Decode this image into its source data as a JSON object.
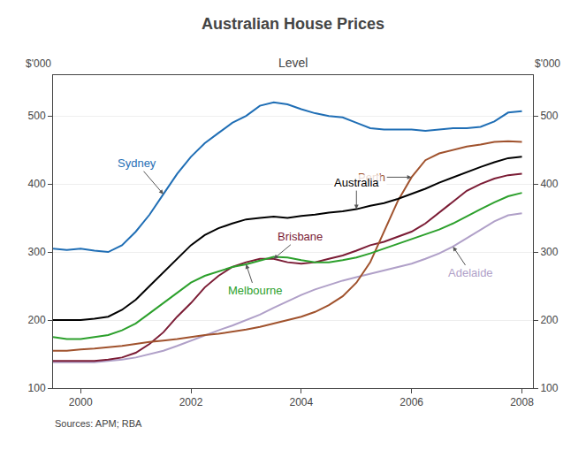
{
  "chart_data": {
    "type": "line",
    "title": "Australian House Prices",
    "subtitle": "Level",
    "ylabel": "$'000",
    "y2label": "$'000",
    "source": "Sources: APM; RBA",
    "x": [
      1999.5,
      1999.75,
      2000.0,
      2000.25,
      2000.5,
      2000.75,
      2001.0,
      2001.25,
      2001.5,
      2001.75,
      2002.0,
      2002.25,
      2002.5,
      2002.75,
      2003.0,
      2003.25,
      2003.5,
      2003.75,
      2004.0,
      2004.25,
      2004.5,
      2004.75,
      2005.0,
      2005.25,
      2005.5,
      2005.75,
      2006.0,
      2006.25,
      2006.5,
      2006.75,
      2007.0,
      2007.25,
      2007.5,
      2007.75,
      2008.0
    ],
    "xlim": [
      1999.5,
      2008.2
    ],
    "xticks": [
      2000,
      2002,
      2004,
      2006,
      2008
    ],
    "ylim": [
      100,
      560
    ],
    "yticks": [
      100,
      200,
      300,
      400,
      500
    ],
    "y2lim": [
      100,
      560
    ],
    "y2ticks": [
      100,
      200,
      300,
      400,
      500
    ],
    "grid": "y",
    "series": [
      {
        "name": "Adelaide",
        "color": "#b0a0c8",
        "values": [
          138,
          138,
          138,
          138,
          140,
          142,
          145,
          150,
          155,
          162,
          170,
          178,
          185,
          192,
          200,
          208,
          218,
          228,
          237,
          245,
          252,
          258,
          263,
          268,
          273,
          278,
          283,
          290,
          298,
          308,
          320,
          333,
          345,
          354,
          357
        ]
      },
      {
        "name": "Brisbane",
        "color": "#7b1c35",
        "values": [
          140,
          140,
          140,
          140,
          142,
          145,
          152,
          165,
          182,
          205,
          225,
          248,
          265,
          278,
          285,
          290,
          290,
          285,
          283,
          285,
          290,
          295,
          302,
          310,
          315,
          322,
          330,
          342,
          358,
          375,
          390,
          400,
          408,
          413,
          415
        ]
      },
      {
        "name": "Perth",
        "color": "#a0522d",
        "values": [
          155,
          155,
          157,
          158,
          160,
          162,
          165,
          168,
          170,
          172,
          175,
          178,
          180,
          183,
          186,
          190,
          195,
          200,
          205,
          212,
          222,
          235,
          255,
          285,
          330,
          375,
          410,
          435,
          445,
          450,
          455,
          458,
          462,
          463,
          462
        ]
      },
      {
        "name": "Melbourne",
        "color": "#2ca02c",
        "values": [
          175,
          172,
          172,
          175,
          178,
          185,
          195,
          210,
          225,
          240,
          255,
          265,
          272,
          278,
          282,
          288,
          293,
          292,
          288,
          285,
          285,
          288,
          292,
          298,
          305,
          312,
          318,
          325,
          333,
          342,
          353,
          363,
          373,
          382,
          387
        ]
      },
      {
        "name": "Australia",
        "color": "#000000",
        "values": [
          200,
          200,
          200,
          202,
          205,
          215,
          230,
          250,
          270,
          290,
          310,
          325,
          335,
          342,
          348,
          350,
          352,
          350,
          353,
          355,
          358,
          360,
          363,
          368,
          372,
          378,
          385,
          393,
          402,
          410,
          418,
          425,
          432,
          438,
          440
        ]
      },
      {
        "name": "Sydney",
        "color": "#1f6eb5",
        "values": [
          305,
          303,
          305,
          302,
          300,
          310,
          330,
          355,
          385,
          415,
          440,
          460,
          475,
          490,
          500,
          515,
          520,
          517,
          510,
          504,
          500,
          498,
          490,
          482,
          480,
          480,
          480,
          478,
          480,
          482,
          482,
          484,
          492,
          505,
          507
        ]
      }
    ]
  }
}
